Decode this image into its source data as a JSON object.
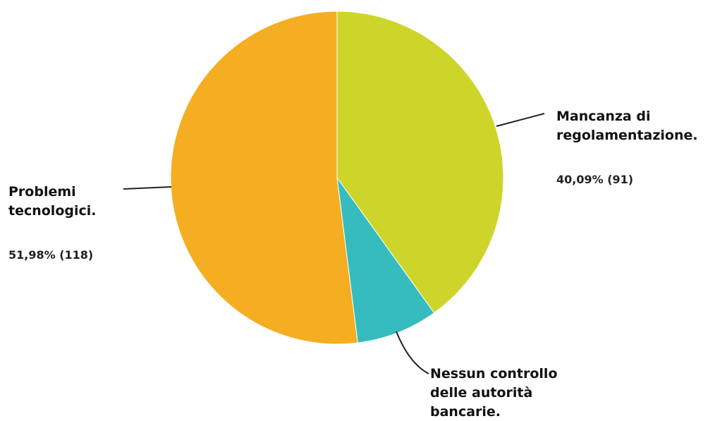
{
  "chart_data": {
    "type": "pie",
    "title": "",
    "slices": [
      {
        "label_lines": [
          "Mancanza di",
          "regolamentazione."
        ],
        "percent": 40.09,
        "count": 91,
        "value_label": "40,09% (91)",
        "color": "#cdd52a"
      },
      {
        "label_lines": [
          "Nessun controllo",
          "delle autorità",
          "bancarie."
        ],
        "percent": 7.93,
        "count": 18,
        "value_label": "",
        "color": "#36bcbf"
      },
      {
        "label_lines": [
          "Problemi",
          "tecnologici."
        ],
        "percent": 51.98,
        "count": 118,
        "value_label": "51,98% (118)",
        "color": "#f5ad22"
      }
    ]
  }
}
